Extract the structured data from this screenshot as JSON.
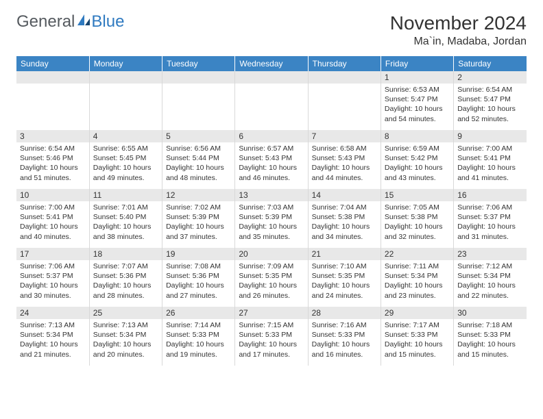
{
  "logo": {
    "text1": "General",
    "text2": "Blue"
  },
  "title": "November 2024",
  "location": "Ma`in, Madaba, Jordan",
  "colors": {
    "header_bg": "#3b84c4",
    "header_text": "#ffffff",
    "daynum_bg": "#e8e8e8",
    "text": "#333333",
    "logo_gray": "#555a5f",
    "logo_blue": "#2f7ac0",
    "grid_line": "#d8d8d8"
  },
  "days_of_week": [
    "Sunday",
    "Monday",
    "Tuesday",
    "Wednesday",
    "Thursday",
    "Friday",
    "Saturday"
  ],
  "weeks": [
    [
      null,
      null,
      null,
      null,
      null,
      {
        "n": "1",
        "sr": "6:53 AM",
        "ss": "5:47 PM",
        "dl": "10 hours and 54 minutes."
      },
      {
        "n": "2",
        "sr": "6:54 AM",
        "ss": "5:47 PM",
        "dl": "10 hours and 52 minutes."
      }
    ],
    [
      {
        "n": "3",
        "sr": "6:54 AM",
        "ss": "5:46 PM",
        "dl": "10 hours and 51 minutes."
      },
      {
        "n": "4",
        "sr": "6:55 AM",
        "ss": "5:45 PM",
        "dl": "10 hours and 49 minutes."
      },
      {
        "n": "5",
        "sr": "6:56 AM",
        "ss": "5:44 PM",
        "dl": "10 hours and 48 minutes."
      },
      {
        "n": "6",
        "sr": "6:57 AM",
        "ss": "5:43 PM",
        "dl": "10 hours and 46 minutes."
      },
      {
        "n": "7",
        "sr": "6:58 AM",
        "ss": "5:43 PM",
        "dl": "10 hours and 44 minutes."
      },
      {
        "n": "8",
        "sr": "6:59 AM",
        "ss": "5:42 PM",
        "dl": "10 hours and 43 minutes."
      },
      {
        "n": "9",
        "sr": "7:00 AM",
        "ss": "5:41 PM",
        "dl": "10 hours and 41 minutes."
      }
    ],
    [
      {
        "n": "10",
        "sr": "7:00 AM",
        "ss": "5:41 PM",
        "dl": "10 hours and 40 minutes."
      },
      {
        "n": "11",
        "sr": "7:01 AM",
        "ss": "5:40 PM",
        "dl": "10 hours and 38 minutes."
      },
      {
        "n": "12",
        "sr": "7:02 AM",
        "ss": "5:39 PM",
        "dl": "10 hours and 37 minutes."
      },
      {
        "n": "13",
        "sr": "7:03 AM",
        "ss": "5:39 PM",
        "dl": "10 hours and 35 minutes."
      },
      {
        "n": "14",
        "sr": "7:04 AM",
        "ss": "5:38 PM",
        "dl": "10 hours and 34 minutes."
      },
      {
        "n": "15",
        "sr": "7:05 AM",
        "ss": "5:38 PM",
        "dl": "10 hours and 32 minutes."
      },
      {
        "n": "16",
        "sr": "7:06 AM",
        "ss": "5:37 PM",
        "dl": "10 hours and 31 minutes."
      }
    ],
    [
      {
        "n": "17",
        "sr": "7:06 AM",
        "ss": "5:37 PM",
        "dl": "10 hours and 30 minutes."
      },
      {
        "n": "18",
        "sr": "7:07 AM",
        "ss": "5:36 PM",
        "dl": "10 hours and 28 minutes."
      },
      {
        "n": "19",
        "sr": "7:08 AM",
        "ss": "5:36 PM",
        "dl": "10 hours and 27 minutes."
      },
      {
        "n": "20",
        "sr": "7:09 AM",
        "ss": "5:35 PM",
        "dl": "10 hours and 26 minutes."
      },
      {
        "n": "21",
        "sr": "7:10 AM",
        "ss": "5:35 PM",
        "dl": "10 hours and 24 minutes."
      },
      {
        "n": "22",
        "sr": "7:11 AM",
        "ss": "5:34 PM",
        "dl": "10 hours and 23 minutes."
      },
      {
        "n": "23",
        "sr": "7:12 AM",
        "ss": "5:34 PM",
        "dl": "10 hours and 22 minutes."
      }
    ],
    [
      {
        "n": "24",
        "sr": "7:13 AM",
        "ss": "5:34 PM",
        "dl": "10 hours and 21 minutes."
      },
      {
        "n": "25",
        "sr": "7:13 AM",
        "ss": "5:34 PM",
        "dl": "10 hours and 20 minutes."
      },
      {
        "n": "26",
        "sr": "7:14 AM",
        "ss": "5:33 PM",
        "dl": "10 hours and 19 minutes."
      },
      {
        "n": "27",
        "sr": "7:15 AM",
        "ss": "5:33 PM",
        "dl": "10 hours and 17 minutes."
      },
      {
        "n": "28",
        "sr": "7:16 AM",
        "ss": "5:33 PM",
        "dl": "10 hours and 16 minutes."
      },
      {
        "n": "29",
        "sr": "7:17 AM",
        "ss": "5:33 PM",
        "dl": "10 hours and 15 minutes."
      },
      {
        "n": "30",
        "sr": "7:18 AM",
        "ss": "5:33 PM",
        "dl": "10 hours and 15 minutes."
      }
    ]
  ],
  "labels": {
    "sunrise": "Sunrise:",
    "sunset": "Sunset:",
    "daylight": "Daylight:"
  }
}
